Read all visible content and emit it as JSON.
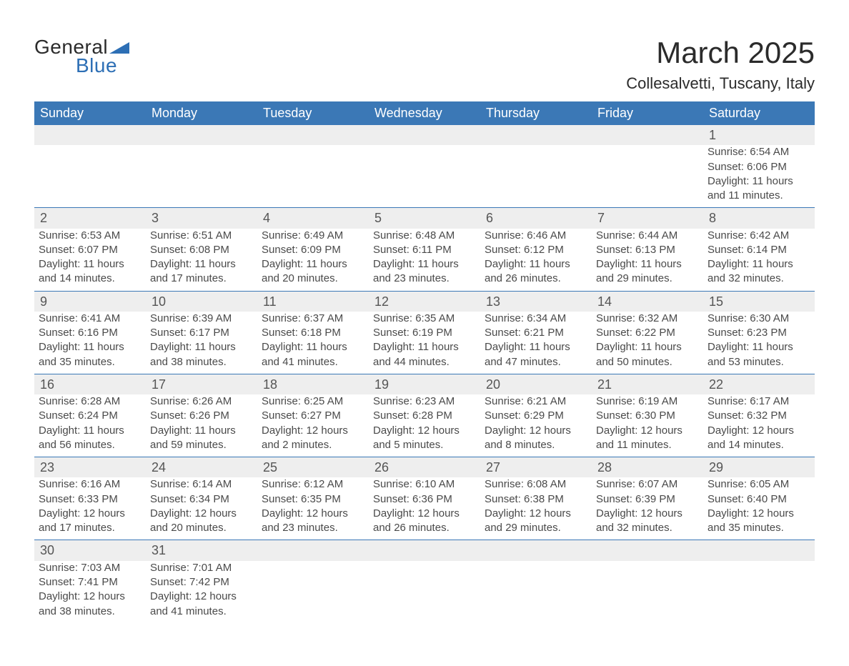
{
  "brand": {
    "part1": "General",
    "part2": "Blue"
  },
  "title": "March 2025",
  "location": "Collesalvetti, Tuscany, Italy",
  "colors": {
    "header_bg": "#3b78b6",
    "header_text": "#ffffff",
    "daynum_bg": "#eeeeee",
    "row_border": "#3b78b6",
    "body_text": "#4a4a4a",
    "title_text": "#2b2b2b",
    "brand_blue": "#2d6fb5",
    "page_bg": "#ffffff"
  },
  "typography": {
    "title_fontsize": 42,
    "location_fontsize": 22,
    "header_cell_fontsize": 18,
    "daynum_fontsize": 18,
    "body_fontsize": 15
  },
  "layout": {
    "columns": 7,
    "column_width_pct": 14.2857
  },
  "weekdays": [
    "Sunday",
    "Monday",
    "Tuesday",
    "Wednesday",
    "Thursday",
    "Friday",
    "Saturday"
  ],
  "weeks": [
    [
      null,
      null,
      null,
      null,
      null,
      null,
      {
        "day": "1",
        "sunrise": "Sunrise: 6:54 AM",
        "sunset": "Sunset: 6:06 PM",
        "daylight1": "Daylight: 11 hours",
        "daylight2": "and 11 minutes."
      }
    ],
    [
      {
        "day": "2",
        "sunrise": "Sunrise: 6:53 AM",
        "sunset": "Sunset: 6:07 PM",
        "daylight1": "Daylight: 11 hours",
        "daylight2": "and 14 minutes."
      },
      {
        "day": "3",
        "sunrise": "Sunrise: 6:51 AM",
        "sunset": "Sunset: 6:08 PM",
        "daylight1": "Daylight: 11 hours",
        "daylight2": "and 17 minutes."
      },
      {
        "day": "4",
        "sunrise": "Sunrise: 6:49 AM",
        "sunset": "Sunset: 6:09 PM",
        "daylight1": "Daylight: 11 hours",
        "daylight2": "and 20 minutes."
      },
      {
        "day": "5",
        "sunrise": "Sunrise: 6:48 AM",
        "sunset": "Sunset: 6:11 PM",
        "daylight1": "Daylight: 11 hours",
        "daylight2": "and 23 minutes."
      },
      {
        "day": "6",
        "sunrise": "Sunrise: 6:46 AM",
        "sunset": "Sunset: 6:12 PM",
        "daylight1": "Daylight: 11 hours",
        "daylight2": "and 26 minutes."
      },
      {
        "day": "7",
        "sunrise": "Sunrise: 6:44 AM",
        "sunset": "Sunset: 6:13 PM",
        "daylight1": "Daylight: 11 hours",
        "daylight2": "and 29 minutes."
      },
      {
        "day": "8",
        "sunrise": "Sunrise: 6:42 AM",
        "sunset": "Sunset: 6:14 PM",
        "daylight1": "Daylight: 11 hours",
        "daylight2": "and 32 minutes."
      }
    ],
    [
      {
        "day": "9",
        "sunrise": "Sunrise: 6:41 AM",
        "sunset": "Sunset: 6:16 PM",
        "daylight1": "Daylight: 11 hours",
        "daylight2": "and 35 minutes."
      },
      {
        "day": "10",
        "sunrise": "Sunrise: 6:39 AM",
        "sunset": "Sunset: 6:17 PM",
        "daylight1": "Daylight: 11 hours",
        "daylight2": "and 38 minutes."
      },
      {
        "day": "11",
        "sunrise": "Sunrise: 6:37 AM",
        "sunset": "Sunset: 6:18 PM",
        "daylight1": "Daylight: 11 hours",
        "daylight2": "and 41 minutes."
      },
      {
        "day": "12",
        "sunrise": "Sunrise: 6:35 AM",
        "sunset": "Sunset: 6:19 PM",
        "daylight1": "Daylight: 11 hours",
        "daylight2": "and 44 minutes."
      },
      {
        "day": "13",
        "sunrise": "Sunrise: 6:34 AM",
        "sunset": "Sunset: 6:21 PM",
        "daylight1": "Daylight: 11 hours",
        "daylight2": "and 47 minutes."
      },
      {
        "day": "14",
        "sunrise": "Sunrise: 6:32 AM",
        "sunset": "Sunset: 6:22 PM",
        "daylight1": "Daylight: 11 hours",
        "daylight2": "and 50 minutes."
      },
      {
        "day": "15",
        "sunrise": "Sunrise: 6:30 AM",
        "sunset": "Sunset: 6:23 PM",
        "daylight1": "Daylight: 11 hours",
        "daylight2": "and 53 minutes."
      }
    ],
    [
      {
        "day": "16",
        "sunrise": "Sunrise: 6:28 AM",
        "sunset": "Sunset: 6:24 PM",
        "daylight1": "Daylight: 11 hours",
        "daylight2": "and 56 minutes."
      },
      {
        "day": "17",
        "sunrise": "Sunrise: 6:26 AM",
        "sunset": "Sunset: 6:26 PM",
        "daylight1": "Daylight: 11 hours",
        "daylight2": "and 59 minutes."
      },
      {
        "day": "18",
        "sunrise": "Sunrise: 6:25 AM",
        "sunset": "Sunset: 6:27 PM",
        "daylight1": "Daylight: 12 hours",
        "daylight2": "and 2 minutes."
      },
      {
        "day": "19",
        "sunrise": "Sunrise: 6:23 AM",
        "sunset": "Sunset: 6:28 PM",
        "daylight1": "Daylight: 12 hours",
        "daylight2": "and 5 minutes."
      },
      {
        "day": "20",
        "sunrise": "Sunrise: 6:21 AM",
        "sunset": "Sunset: 6:29 PM",
        "daylight1": "Daylight: 12 hours",
        "daylight2": "and 8 minutes."
      },
      {
        "day": "21",
        "sunrise": "Sunrise: 6:19 AM",
        "sunset": "Sunset: 6:30 PM",
        "daylight1": "Daylight: 12 hours",
        "daylight2": "and 11 minutes."
      },
      {
        "day": "22",
        "sunrise": "Sunrise: 6:17 AM",
        "sunset": "Sunset: 6:32 PM",
        "daylight1": "Daylight: 12 hours",
        "daylight2": "and 14 minutes."
      }
    ],
    [
      {
        "day": "23",
        "sunrise": "Sunrise: 6:16 AM",
        "sunset": "Sunset: 6:33 PM",
        "daylight1": "Daylight: 12 hours",
        "daylight2": "and 17 minutes."
      },
      {
        "day": "24",
        "sunrise": "Sunrise: 6:14 AM",
        "sunset": "Sunset: 6:34 PM",
        "daylight1": "Daylight: 12 hours",
        "daylight2": "and 20 minutes."
      },
      {
        "day": "25",
        "sunrise": "Sunrise: 6:12 AM",
        "sunset": "Sunset: 6:35 PM",
        "daylight1": "Daylight: 12 hours",
        "daylight2": "and 23 minutes."
      },
      {
        "day": "26",
        "sunrise": "Sunrise: 6:10 AM",
        "sunset": "Sunset: 6:36 PM",
        "daylight1": "Daylight: 12 hours",
        "daylight2": "and 26 minutes."
      },
      {
        "day": "27",
        "sunrise": "Sunrise: 6:08 AM",
        "sunset": "Sunset: 6:38 PM",
        "daylight1": "Daylight: 12 hours",
        "daylight2": "and 29 minutes."
      },
      {
        "day": "28",
        "sunrise": "Sunrise: 6:07 AM",
        "sunset": "Sunset: 6:39 PM",
        "daylight1": "Daylight: 12 hours",
        "daylight2": "and 32 minutes."
      },
      {
        "day": "29",
        "sunrise": "Sunrise: 6:05 AM",
        "sunset": "Sunset: 6:40 PM",
        "daylight1": "Daylight: 12 hours",
        "daylight2": "and 35 minutes."
      }
    ],
    [
      {
        "day": "30",
        "sunrise": "Sunrise: 7:03 AM",
        "sunset": "Sunset: 7:41 PM",
        "daylight1": "Daylight: 12 hours",
        "daylight2": "and 38 minutes."
      },
      {
        "day": "31",
        "sunrise": "Sunrise: 7:01 AM",
        "sunset": "Sunset: 7:42 PM",
        "daylight1": "Daylight: 12 hours",
        "daylight2": "and 41 minutes."
      },
      null,
      null,
      null,
      null,
      null
    ]
  ]
}
